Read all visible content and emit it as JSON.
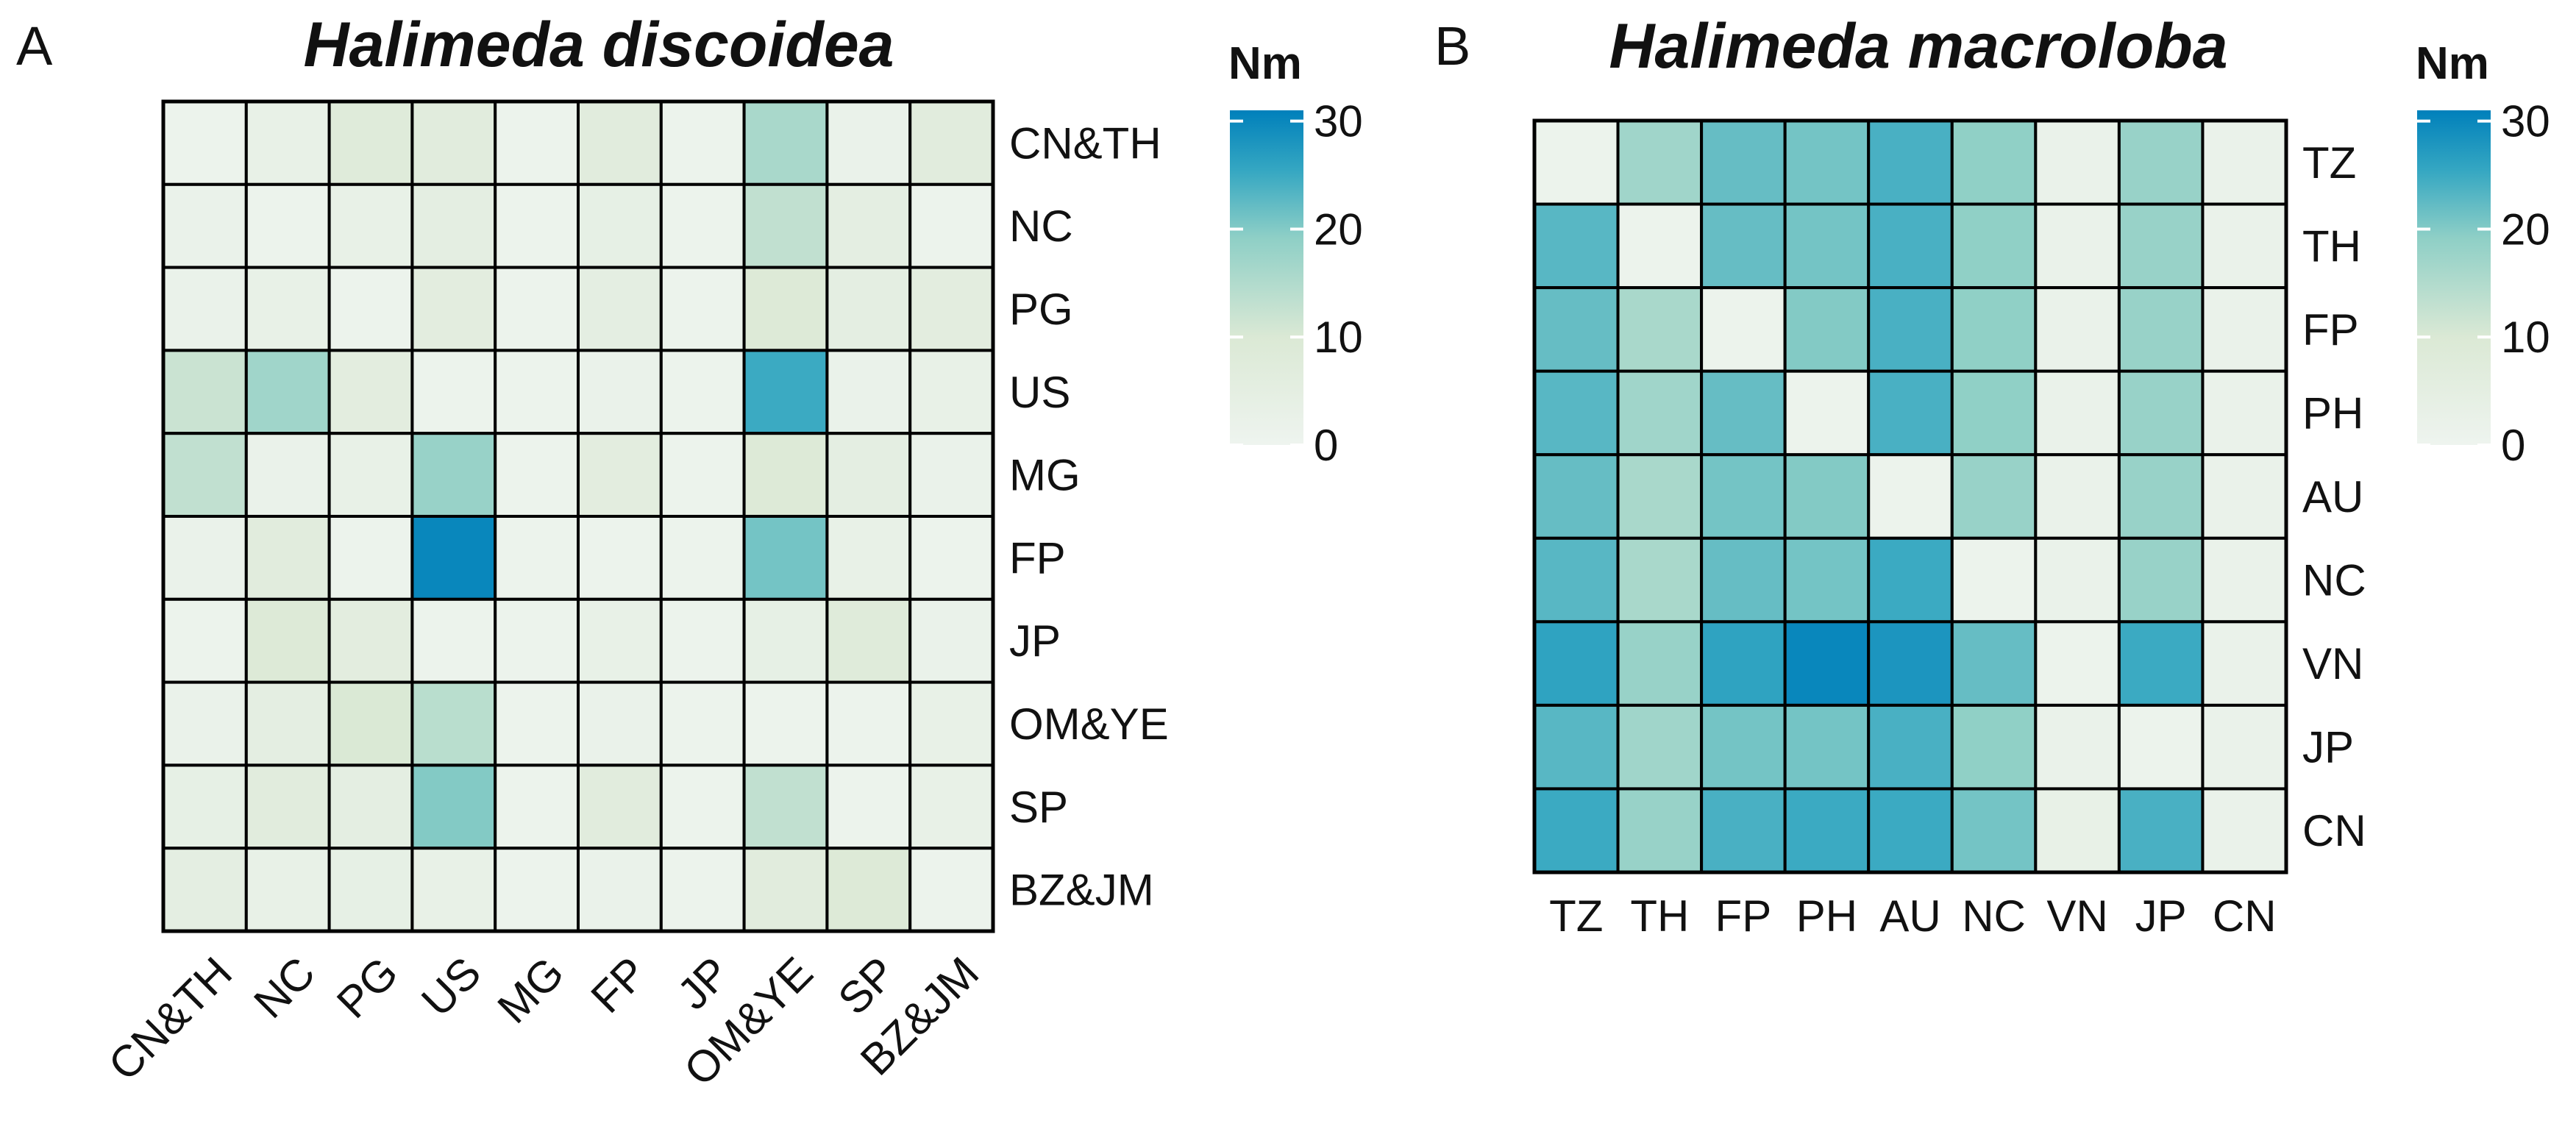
{
  "colors": {
    "scale_low": "#eef4ef",
    "scale_mid1": "#dbe9d5",
    "scale_mid2": "#8ecfc6",
    "scale_mid3": "#35a7c2",
    "scale_high": "#0080bb",
    "grid_line": "#000000",
    "text": "#111111"
  },
  "chart_data": [
    {
      "type": "heatmap",
      "panel_label": "A",
      "title": "Halimeda discoidea",
      "legend_title": "Nm",
      "legend_ticks": [
        "30",
        "20",
        "10",
        "0"
      ],
      "color_range": [
        0,
        31
      ],
      "rows": [
        "CN&TH",
        "NC",
        "PG",
        "US",
        "MG",
        "FP",
        "JP",
        "OM&YE",
        "SP",
        "BZ&JM"
      ],
      "columns": [
        "CN&TH",
        "NC",
        "PG",
        "US",
        "MG",
        "FP",
        "JP",
        "OM&YE",
        "SP",
        "BZ&JM"
      ],
      "values": [
        [
          1,
          3,
          8,
          7,
          1,
          7,
          1,
          16,
          2,
          7
        ],
        [
          2,
          1,
          3,
          5,
          1,
          4,
          1,
          13,
          5,
          1
        ],
        [
          2,
          3,
          1,
          6,
          1,
          5,
          1,
          9,
          5,
          6
        ],
        [
          12,
          17,
          6,
          1,
          1,
          2,
          1,
          25,
          2,
          3
        ],
        [
          13,
          2,
          3,
          18,
          1,
          6,
          1,
          9,
          5,
          2
        ],
        [
          2,
          7,
          1,
          30,
          1,
          1,
          1,
          21,
          3,
          1
        ],
        [
          1,
          9,
          6,
          1,
          1,
          3,
          1,
          4,
          8,
          2
        ],
        [
          2,
          5,
          10,
          14,
          1,
          2,
          1,
          1,
          1,
          3
        ],
        [
          4,
          7,
          5,
          20,
          1,
          7,
          1,
          13,
          1,
          3
        ],
        [
          5,
          3,
          4,
          3,
          1,
          2,
          1,
          7,
          9,
          1
        ]
      ]
    },
    {
      "type": "heatmap",
      "panel_label": "B",
      "title": "Halimeda macroloba",
      "legend_title": "Nm",
      "legend_ticks": [
        "30",
        "20",
        "10",
        "0"
      ],
      "color_range": [
        0,
        31
      ],
      "rows": [
        "TZ",
        "TH",
        "FP",
        "PH",
        "AU",
        "NC",
        "VN",
        "JP",
        "CN"
      ],
      "columns": [
        "TZ",
        "TH",
        "FP",
        "PH",
        "AU",
        "NC",
        "VN",
        "JP",
        "CN"
      ],
      "values": [
        [
          1,
          17,
          22,
          21,
          24,
          19,
          2,
          18,
          2
        ],
        [
          23,
          1,
          22,
          21,
          24,
          19,
          2,
          18,
          2
        ],
        [
          22,
          16,
          1,
          20,
          24,
          19,
          2,
          18,
          2
        ],
        [
          23,
          17,
          22,
          1,
          24,
          19,
          2,
          18,
          2
        ],
        [
          22,
          16,
          21,
          20,
          1,
          18,
          2,
          18,
          2
        ],
        [
          23,
          16,
          22,
          21,
          25,
          1,
          2,
          18,
          2
        ],
        [
          26,
          18,
          26,
          30,
          28,
          22,
          1,
          25,
          2
        ],
        [
          23,
          17,
          21,
          21,
          24,
          19,
          2,
          1,
          2
        ],
        [
          25,
          18,
          24,
          25,
          25,
          21,
          3,
          24,
          2
        ]
      ]
    }
  ]
}
